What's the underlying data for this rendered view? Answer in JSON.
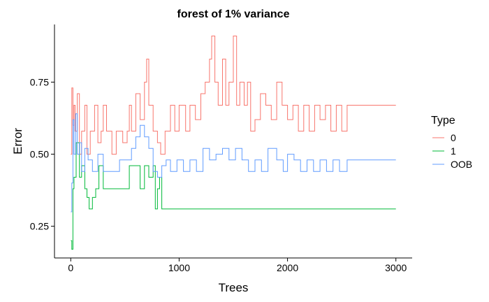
{
  "chart_data": {
    "type": "line",
    "title": "forest of 1% variance",
    "xlabel": "Trees",
    "ylabel": "Error",
    "xlim": [
      -150,
      3150
    ],
    "ylim": [
      0.14,
      0.95
    ],
    "x_ticks": [
      0,
      1000,
      2000,
      3000
    ],
    "x_tick_labels": [
      "0",
      "1000",
      "2000",
      "3000"
    ],
    "y_ticks": [
      0.25,
      0.5,
      0.75
    ],
    "y_tick_labels": [
      "0.25",
      "0.50",
      "0.75"
    ],
    "grid": false,
    "legend": {
      "title": "Type",
      "placement": "right",
      "entries": [
        "0",
        "1",
        "OOB"
      ]
    },
    "series": [
      {
        "name": "0",
        "color": "#F8766D",
        "points": [
          [
            1,
            0.5
          ],
          [
            10,
            0.73
          ],
          [
            20,
            0.6
          ],
          [
            30,
            0.67
          ],
          [
            40,
            0.58
          ],
          [
            60,
            0.71
          ],
          [
            80,
            0.5
          ],
          [
            100,
            0.58
          ],
          [
            130,
            0.67
          ],
          [
            150,
            0.5
          ],
          [
            180,
            0.58
          ],
          [
            220,
            0.67
          ],
          [
            250,
            0.54
          ],
          [
            280,
            0.58
          ],
          [
            300,
            0.67
          ],
          [
            330,
            0.58
          ],
          [
            380,
            0.5
          ],
          [
            420,
            0.58
          ],
          [
            480,
            0.54
          ],
          [
            520,
            0.58
          ],
          [
            540,
            0.67
          ],
          [
            560,
            0.58
          ],
          [
            600,
            0.71
          ],
          [
            640,
            0.62
          ],
          [
            680,
            0.75
          ],
          [
            700,
            0.83
          ],
          [
            720,
            0.67
          ],
          [
            760,
            0.58
          ],
          [
            800,
            0.54
          ],
          [
            830,
            0.5
          ],
          [
            870,
            0.58
          ],
          [
            920,
            0.67
          ],
          [
            960,
            0.58
          ],
          [
            1000,
            0.67
          ],
          [
            1060,
            0.58
          ],
          [
            1100,
            0.67
          ],
          [
            1150,
            0.62
          ],
          [
            1200,
            0.71
          ],
          [
            1240,
            0.75
          ],
          [
            1280,
            0.83
          ],
          [
            1300,
            0.91
          ],
          [
            1330,
            0.75
          ],
          [
            1360,
            0.67
          ],
          [
            1400,
            0.83
          ],
          [
            1430,
            0.67
          ],
          [
            1460,
            0.75
          ],
          [
            1500,
            0.91
          ],
          [
            1530,
            0.67
          ],
          [
            1560,
            0.75
          ],
          [
            1600,
            0.67
          ],
          [
            1630,
            0.75
          ],
          [
            1660,
            0.58
          ],
          [
            1700,
            0.62
          ],
          [
            1750,
            0.71
          ],
          [
            1800,
            0.67
          ],
          [
            1850,
            0.62
          ],
          [
            1900,
            0.75
          ],
          [
            1950,
            0.67
          ],
          [
            2000,
            0.62
          ],
          [
            2050,
            0.67
          ],
          [
            2100,
            0.58
          ],
          [
            2150,
            0.67
          ],
          [
            2200,
            0.58
          ],
          [
            2250,
            0.67
          ],
          [
            2300,
            0.62
          ],
          [
            2350,
            0.67
          ],
          [
            2400,
            0.58
          ],
          [
            2450,
            0.67
          ],
          [
            2500,
            0.58
          ],
          [
            2550,
            0.67
          ],
          [
            2600,
            0.67
          ],
          [
            3000,
            0.67
          ]
        ]
      },
      {
        "name": "1",
        "color": "#00BA38",
        "points": [
          [
            1,
            0.2
          ],
          [
            10,
            0.17
          ],
          [
            20,
            0.38
          ],
          [
            30,
            0.42
          ],
          [
            50,
            0.54
          ],
          [
            80,
            0.42
          ],
          [
            100,
            0.46
          ],
          [
            130,
            0.38
          ],
          [
            150,
            0.35
          ],
          [
            170,
            0.31
          ],
          [
            200,
            0.35
          ],
          [
            230,
            0.38
          ],
          [
            260,
            0.46
          ],
          [
            300,
            0.38
          ],
          [
            380,
            0.38
          ],
          [
            430,
            0.38
          ],
          [
            520,
            0.38
          ],
          [
            540,
            0.46
          ],
          [
            600,
            0.46
          ],
          [
            640,
            0.38
          ],
          [
            680,
            0.46
          ],
          [
            720,
            0.42
          ],
          [
            760,
            0.46
          ],
          [
            780,
            0.31
          ],
          [
            800,
            0.38
          ],
          [
            820,
            0.42
          ],
          [
            840,
            0.31
          ],
          [
            1000,
            0.31
          ],
          [
            2000,
            0.31
          ],
          [
            3000,
            0.31
          ]
        ]
      },
      {
        "name": "OOB",
        "color": "#619CFF",
        "points": [
          [
            1,
            0.3
          ],
          [
            10,
            0.4
          ],
          [
            20,
            0.62
          ],
          [
            30,
            0.5
          ],
          [
            45,
            0.64
          ],
          [
            60,
            0.5
          ],
          [
            80,
            0.54
          ],
          [
            100,
            0.44
          ],
          [
            130,
            0.52
          ],
          [
            160,
            0.48
          ],
          [
            200,
            0.44
          ],
          [
            250,
            0.5
          ],
          [
            300,
            0.44
          ],
          [
            380,
            0.44
          ],
          [
            450,
            0.48
          ],
          [
            520,
            0.48
          ],
          [
            560,
            0.52
          ],
          [
            600,
            0.56
          ],
          [
            640,
            0.6
          ],
          [
            680,
            0.56
          ],
          [
            720,
            0.52
          ],
          [
            760,
            0.44
          ],
          [
            800,
            0.42
          ],
          [
            840,
            0.46
          ],
          [
            880,
            0.48
          ],
          [
            920,
            0.44
          ],
          [
            980,
            0.48
          ],
          [
            1040,
            0.44
          ],
          [
            1100,
            0.48
          ],
          [
            1160,
            0.44
          ],
          [
            1220,
            0.52
          ],
          [
            1280,
            0.48
          ],
          [
            1340,
            0.5
          ],
          [
            1400,
            0.52
          ],
          [
            1460,
            0.48
          ],
          [
            1520,
            0.52
          ],
          [
            1580,
            0.48
          ],
          [
            1640,
            0.44
          ],
          [
            1700,
            0.48
          ],
          [
            1760,
            0.44
          ],
          [
            1820,
            0.52
          ],
          [
            1900,
            0.48
          ],
          [
            1960,
            0.44
          ],
          [
            2000,
            0.5
          ],
          [
            2060,
            0.48
          ],
          [
            2120,
            0.44
          ],
          [
            2180,
            0.48
          ],
          [
            2240,
            0.44
          ],
          [
            2300,
            0.48
          ],
          [
            2360,
            0.44
          ],
          [
            2420,
            0.48
          ],
          [
            2480,
            0.44
          ],
          [
            2550,
            0.48
          ],
          [
            3000,
            0.48
          ]
        ]
      }
    ]
  }
}
